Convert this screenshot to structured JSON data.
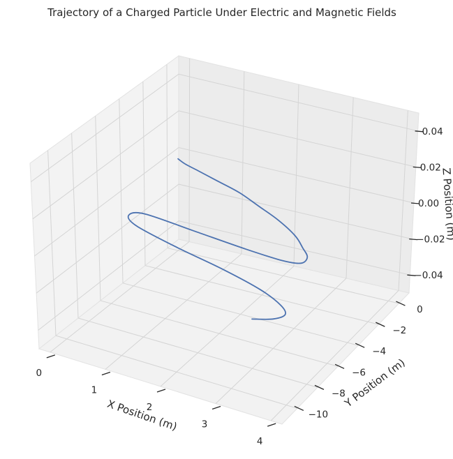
{
  "chart_data": {
    "type": "line",
    "title": "Trajectory of a Charged Particle Under Electric and Magnetic Fields",
    "xlabel": "X Position (m)",
    "ylabel": "Y Position (m)",
    "zlabel": "Z Position (m)",
    "x_ticks": [
      "0",
      "1",
      "2",
      "3",
      "4"
    ],
    "y_ticks": [
      "0",
      "−2",
      "−4",
      "−6",
      "−8",
      "−10"
    ],
    "z_ticks": [
      "0.04",
      "0.02",
      "0.00",
      "−0.02",
      "−0.04"
    ],
    "xlim": [
      -0.2,
      4.2
    ],
    "ylim": [
      -11.5,
      1.0
    ],
    "zlim": [
      -0.05,
      0.05
    ],
    "grid": true,
    "line_color": "#4c72b0",
    "series": [
      {
        "x": [
          0,
          0.2,
          0.5,
          1.0,
          1.5,
          2.0,
          2.5,
          3.0,
          3.3,
          3.5,
          3.5,
          3.2,
          2.5,
          1.5,
          0.5,
          0.3,
          0.6,
          1.5,
          2.5,
          3.3,
          3.8,
          4.0,
          3.9,
          3.6
        ],
        "y": [
          0,
          -0.3,
          -0.6,
          -1.1,
          -1.6,
          -2.3,
          -3.0,
          -3.9,
          -4.7,
          -5.3,
          -5.9,
          -6.1,
          -6.0,
          -5.7,
          -5.4,
          -5.9,
          -6.6,
          -7.4,
          -8.1,
          -8.8,
          -9.5,
          -10.1,
          -10.7,
          -11.2
        ],
        "z": [
          0,
          0,
          0,
          0,
          0,
          0,
          0,
          0,
          0,
          0,
          0,
          0,
          0,
          0,
          0,
          0,
          0,
          0,
          0,
          0,
          0,
          0,
          0,
          0
        ]
      }
    ]
  }
}
